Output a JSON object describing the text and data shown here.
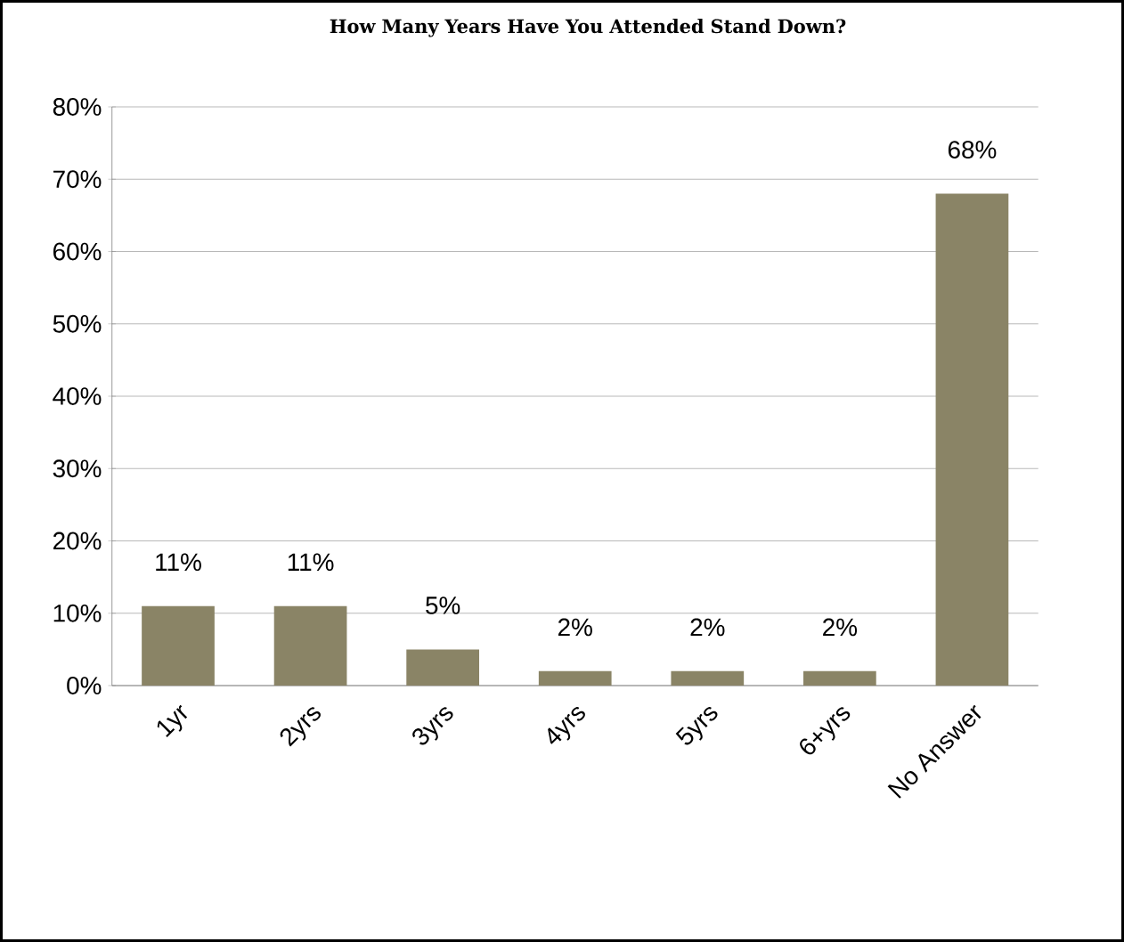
{
  "chart_data": {
    "type": "bar",
    "title": "How Many Years Have You Attended Stand Down?",
    "categories": [
      "1yr",
      "2yrs",
      "3yrs",
      "4yrs",
      "5yrs",
      "6+yrs",
      "No Answer"
    ],
    "values": [
      11,
      11,
      5,
      2,
      2,
      2,
      68
    ],
    "value_labels": [
      "11%",
      "11%",
      "5%",
      "2%",
      "2%",
      "2%",
      "68%"
    ],
    "color": "#8a8466",
    "ylim": [
      0,
      80
    ],
    "yticks": [
      {
        "value": 0,
        "label": "0%"
      },
      {
        "value": 10,
        "label": "10%"
      },
      {
        "value": 20,
        "label": "20%"
      },
      {
        "value": 30,
        "label": "30%"
      },
      {
        "value": 40,
        "label": "40%"
      },
      {
        "value": 50,
        "label": "50%"
      },
      {
        "value": 60,
        "label": "60%"
      },
      {
        "value": 70,
        "label": "70%"
      },
      {
        "value": 80,
        "label": "80%"
      }
    ],
    "grid": "y"
  }
}
